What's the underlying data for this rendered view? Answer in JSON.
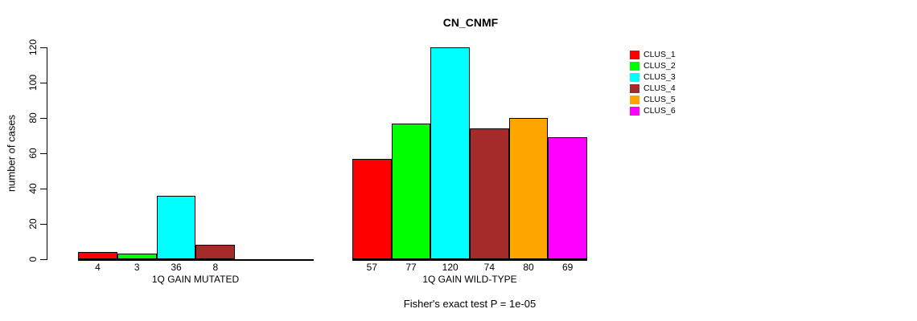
{
  "chart_data": {
    "type": "bar",
    "title": "CN_CNMF",
    "ylabel": "number of cases",
    "ylim": [
      0,
      120
    ],
    "yticks": [
      0,
      20,
      40,
      60,
      80,
      100,
      120
    ],
    "grid": false,
    "legend_position": "right",
    "categories": [
      "CLUS_1",
      "CLUS_2",
      "CLUS_3",
      "CLUS_4",
      "CLUS_5",
      "CLUS_6"
    ],
    "legend": [
      {
        "label": "CLUS_1",
        "color": "#FF0000"
      },
      {
        "label": "CLUS_2",
        "color": "#00FF00"
      },
      {
        "label": "CLUS_3",
        "color": "#00FFFF"
      },
      {
        "label": "CLUS_4",
        "color": "#A52A2A"
      },
      {
        "label": "CLUS_5",
        "color": "#FFA500"
      },
      {
        "label": "CLUS_6",
        "color": "#FF00FF"
      }
    ],
    "panels": [
      {
        "xlabel": "1Q GAIN MUTATED",
        "values": [
          4,
          3,
          36,
          8,
          0,
          0
        ],
        "bar_labels": [
          "4",
          "3",
          "36",
          "8",
          "",
          ""
        ]
      },
      {
        "xlabel": "1Q GAIN WILD-TYPE",
        "values": [
          57,
          77,
          120,
          74,
          80,
          69
        ],
        "bar_labels": [
          "57",
          "77",
          "120",
          "74",
          "80",
          "69"
        ]
      }
    ],
    "annotation": "Fisher's exact test P = 1e-05"
  }
}
